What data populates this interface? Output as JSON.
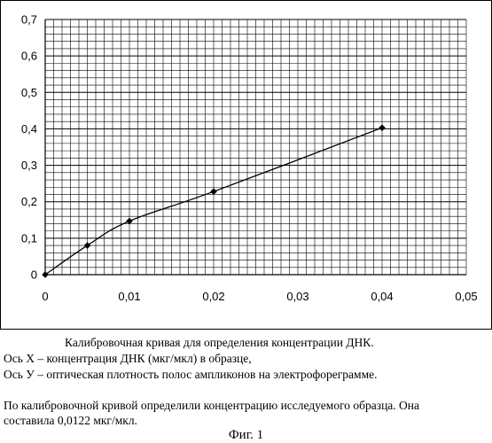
{
  "chart_data": {
    "type": "line",
    "x": [
      0,
      0.005,
      0.01,
      0.02,
      0.04
    ],
    "y": [
      0,
      0.08,
      0.147,
      0.228,
      0.403
    ],
    "xlim": [
      0,
      0.05
    ],
    "ylim": [
      0,
      0.7
    ],
    "x_ticks": [
      0,
      0.01,
      0.02,
      0.03,
      0.04,
      0.05
    ],
    "x_tick_labels": [
      "0",
      "0,01",
      "0,02",
      "0,03",
      "0,04",
      "0,05"
    ],
    "y_ticks": [
      0,
      0.1,
      0.2,
      0.3,
      0.4,
      0.5,
      0.6,
      0.7
    ],
    "y_tick_labels": [
      "0",
      "0,1",
      "0,2",
      "0,3",
      "0,4",
      "0,5",
      "0,6",
      "0,7"
    ],
    "grid": true,
    "minor_y_step": 0.02,
    "minor_x_step": 0.001,
    "markers": "diamond",
    "line_color": "#000000",
    "title": "",
    "xlabel": "",
    "ylabel": ""
  },
  "captions": {
    "title": "Калибровочная кривая для определения концентрации ДНК.",
    "x_axis": "Ось X – концентрация ДНК (мкг/мкл) в образце,",
    "y_axis": "Ось У – оптическая плотность полос ампликонов на электрофореграмме."
  },
  "result": {
    "line1": "По калибровочной кривой определили концентрацию исследуемого образца. Она",
    "line2": "составила 0,0122 мкг/мкл."
  },
  "figure_label": "Фиг. 1"
}
